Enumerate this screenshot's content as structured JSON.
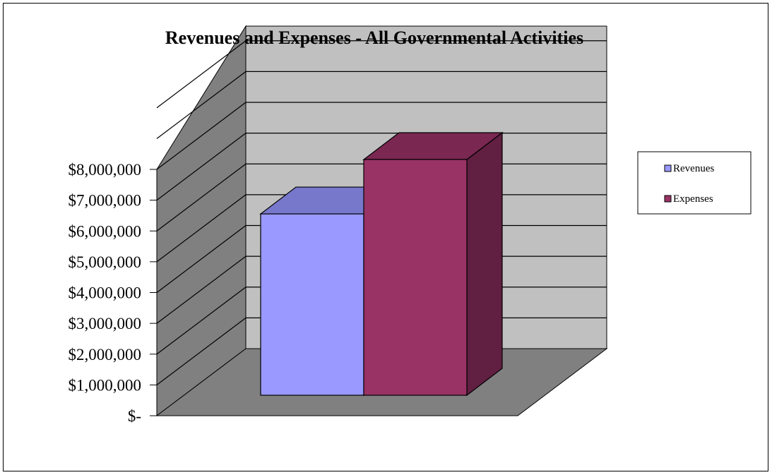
{
  "chart_data": {
    "type": "bar",
    "title": "Revenues and Expenses - All Governmental Activities",
    "xlabel": "",
    "ylabel": "",
    "categories": [
      ""
    ],
    "series": [
      {
        "name": "Revenues",
        "values": [
          6000000
        ],
        "color": "#9999FF",
        "top_color": "#7777CC",
        "side_color": "#5C5CA8"
      },
      {
        "name": "Expenses",
        "values": [
          7800000
        ],
        "color": "#993366",
        "top_color": "#7A2752",
        "side_color": "#611F41"
      }
    ],
    "ylim": [
      0,
      8000000
    ],
    "ytick_labels": [
      "$-",
      "$1,000,000",
      "$2,000,000",
      "$3,000,000",
      "$4,000,000",
      "$5,000,000",
      "$6,000,000",
      "$7,000,000",
      "$8,000,000"
    ],
    "grid": true,
    "legend": "right",
    "style": "3d-clustered-column",
    "wall_color": "#C0C0C0",
    "floor_color": "#808080"
  }
}
